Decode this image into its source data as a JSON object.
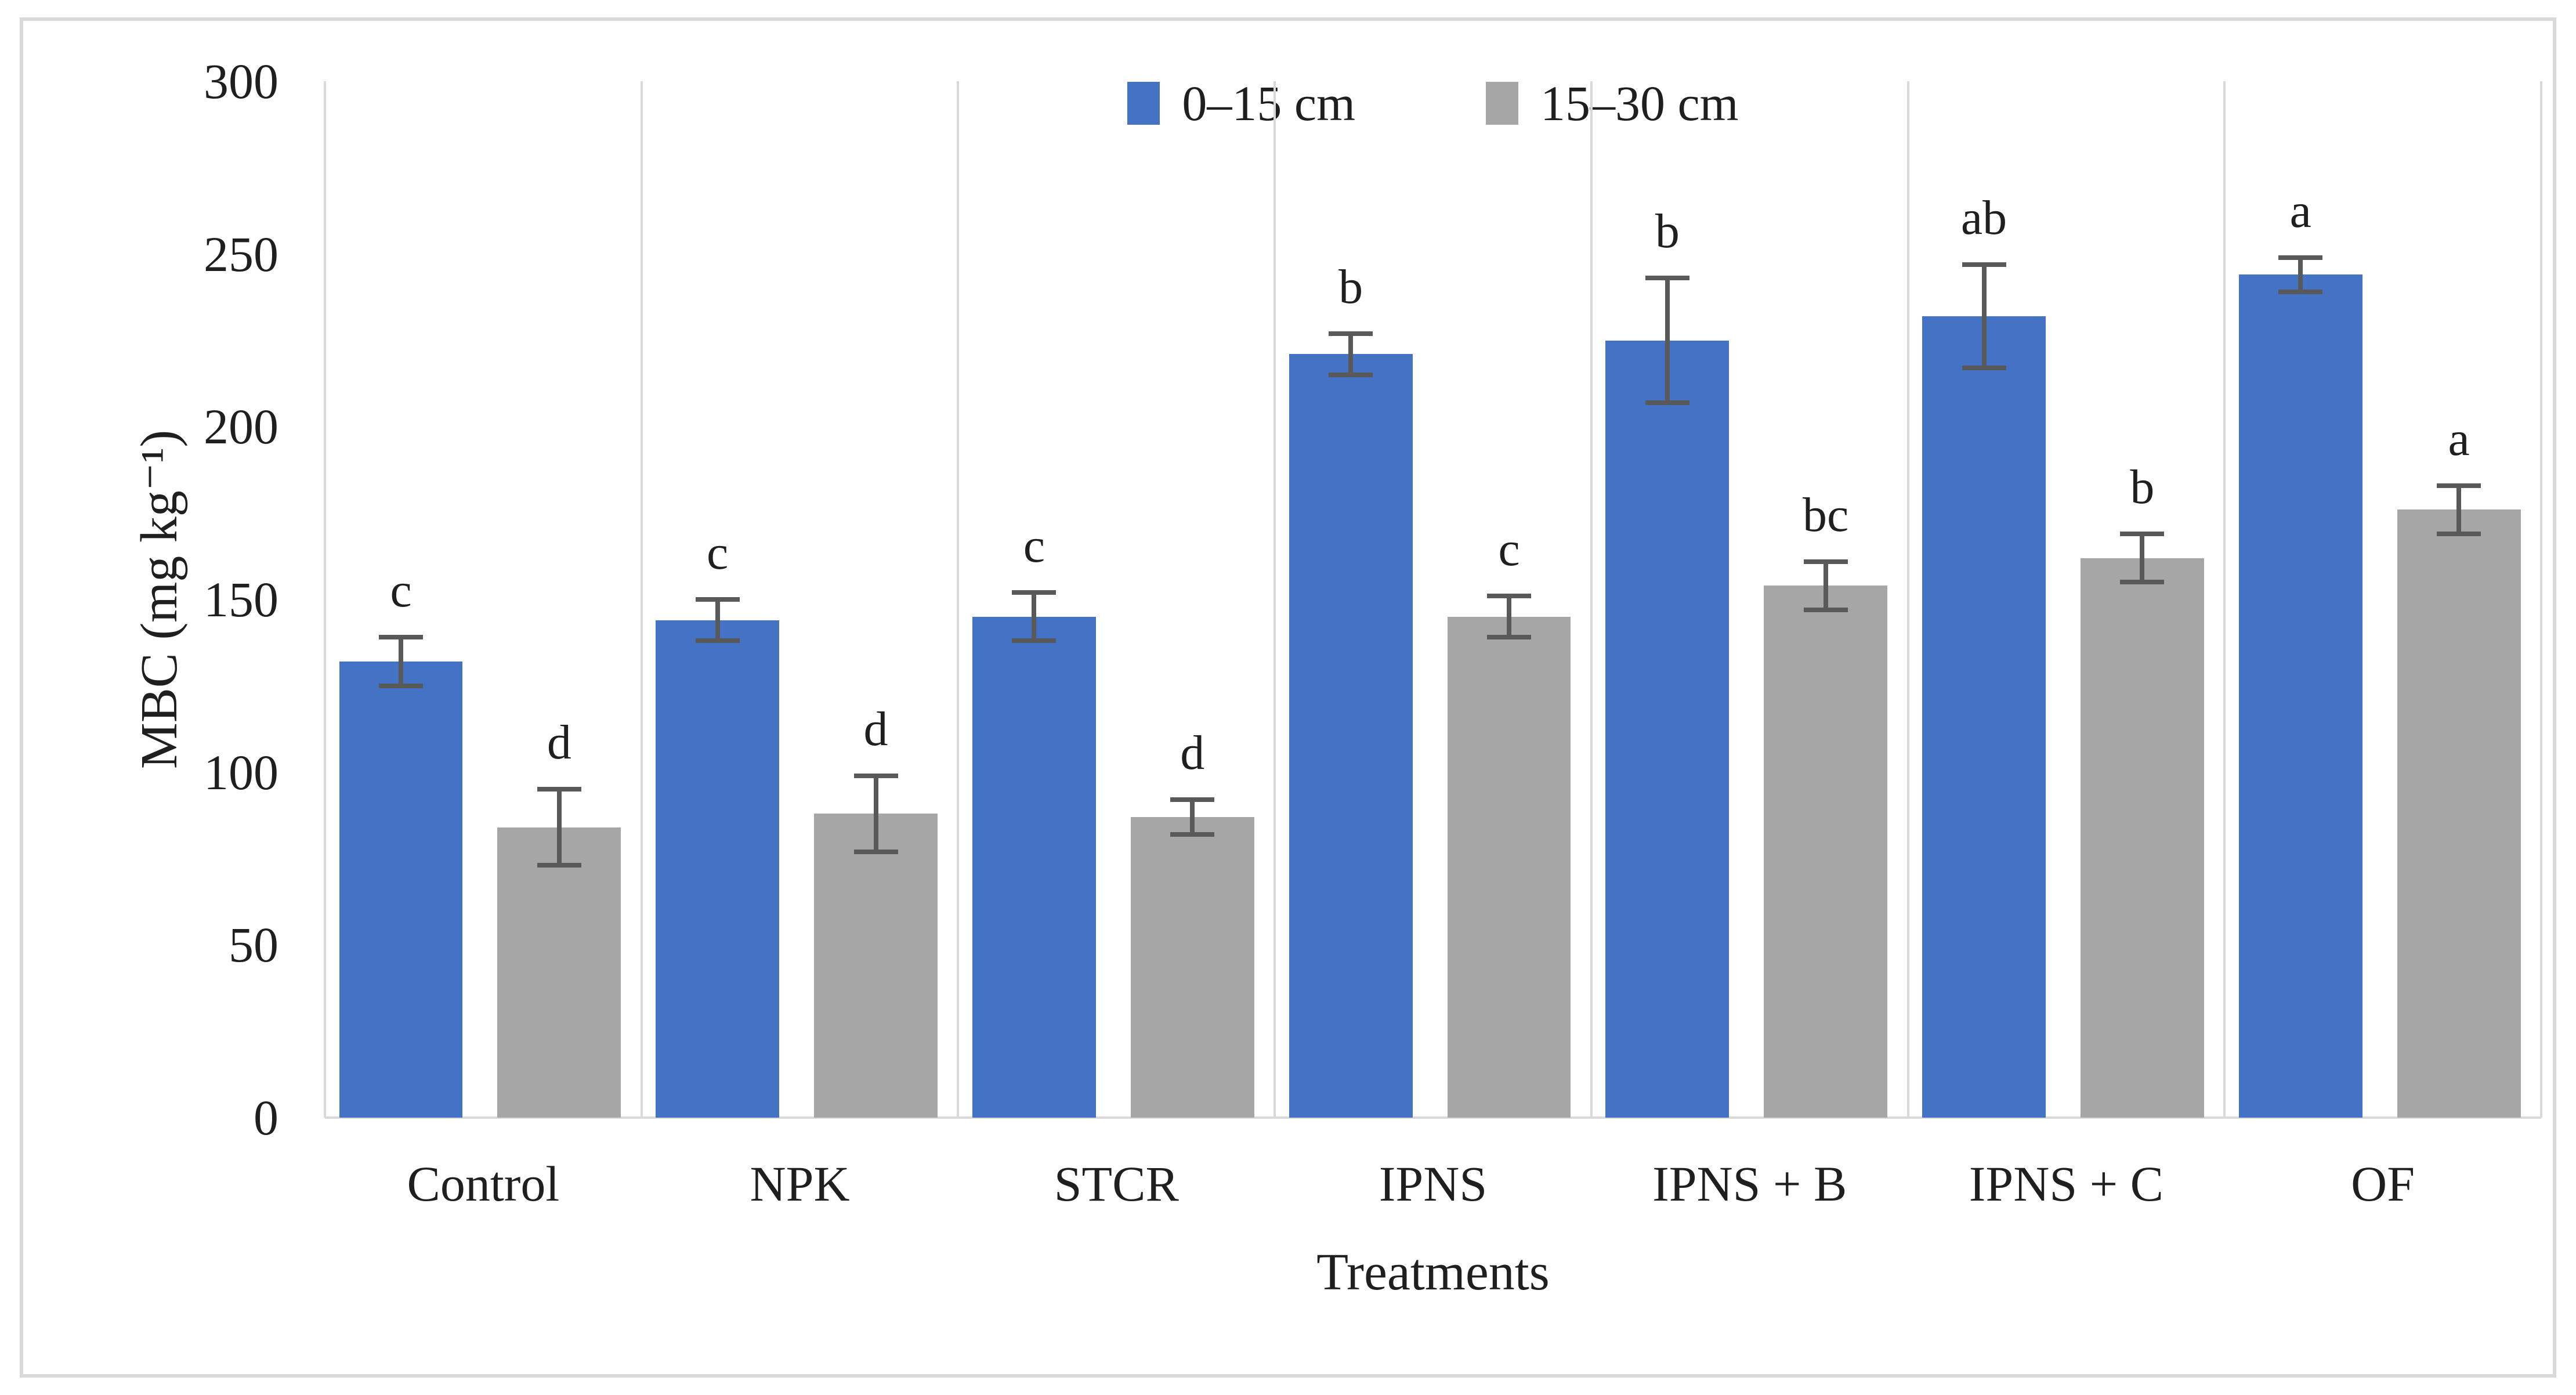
{
  "chart_data": {
    "type": "bar",
    "title": "",
    "xlabel": "Treatments",
    "ylabel": "MBC (mg kg⁻¹)",
    "ylim": [
      0,
      300
    ],
    "yticks": [
      0,
      50,
      100,
      150,
      200,
      250,
      300
    ],
    "categories": [
      "Control",
      "NPK",
      "STCR",
      "IPNS",
      "IPNS + B",
      "IPNS + C",
      "OF"
    ],
    "series": [
      {
        "name": "0–15 cm",
        "color": "#4472c4",
        "values": [
          132,
          144,
          145,
          221,
          225,
          232,
          244
        ],
        "errors": [
          7,
          6,
          7,
          6,
          18,
          15,
          5
        ],
        "letters": [
          "c",
          "c",
          "c",
          "b",
          "b",
          "ab",
          "a"
        ]
      },
      {
        "name": "15–30 cm",
        "color": "#a6a6a6",
        "values": [
          84,
          88,
          87,
          145,
          154,
          162,
          176
        ],
        "errors": [
          11,
          11,
          5,
          6,
          7,
          7,
          7
        ],
        "letters": [
          "d",
          "d",
          "d",
          "c",
          "bc",
          "b",
          "a"
        ]
      }
    ],
    "legend_position": "top-center",
    "grid": "vertical category separators only",
    "error_bar_color": "#595959",
    "gridline_color": "#d9d9d9",
    "text_color": "#1f1f1f",
    "background": "#ffffff",
    "border_color": "#d9d9d9"
  }
}
